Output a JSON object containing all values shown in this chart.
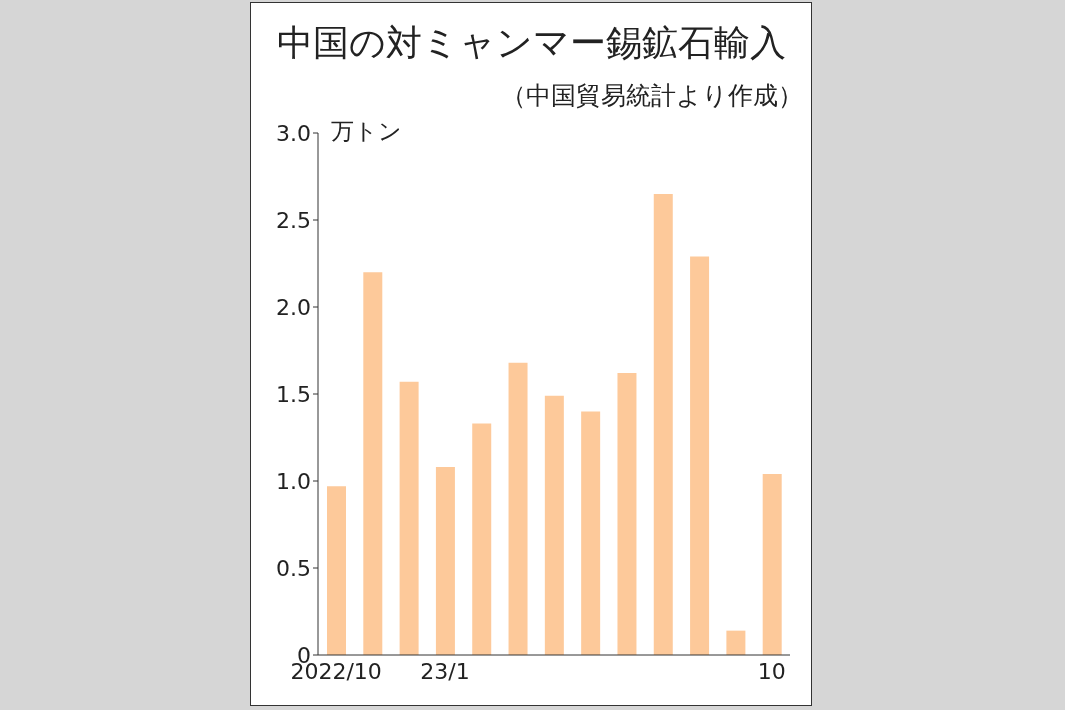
{
  "chart_data": {
    "type": "bar",
    "title": "中国の対ミャンマー錫鉱石輸入",
    "subtitle": "（中国貿易統計より作成）",
    "ylabel": "万トン",
    "categories": [
      "2022/10",
      null,
      null,
      "23/1",
      null,
      null,
      null,
      null,
      null,
      null,
      null,
      null,
      "10"
    ],
    "values": [
      0.97,
      2.2,
      1.57,
      1.08,
      1.33,
      1.68,
      1.49,
      1.4,
      1.62,
      2.65,
      2.29,
      0.14,
      1.04
    ],
    "color": "#fdc99a",
    "ylim": [
      0,
      3
    ],
    "yticks": [
      0,
      0.5,
      {
        "value": 1,
        "label": "1.0"
      },
      1.5,
      {
        "value": 2,
        "label": "2.0"
      },
      2.5,
      {
        "value": 3,
        "label": "3.0"
      }
    ],
    "grid": false
  }
}
